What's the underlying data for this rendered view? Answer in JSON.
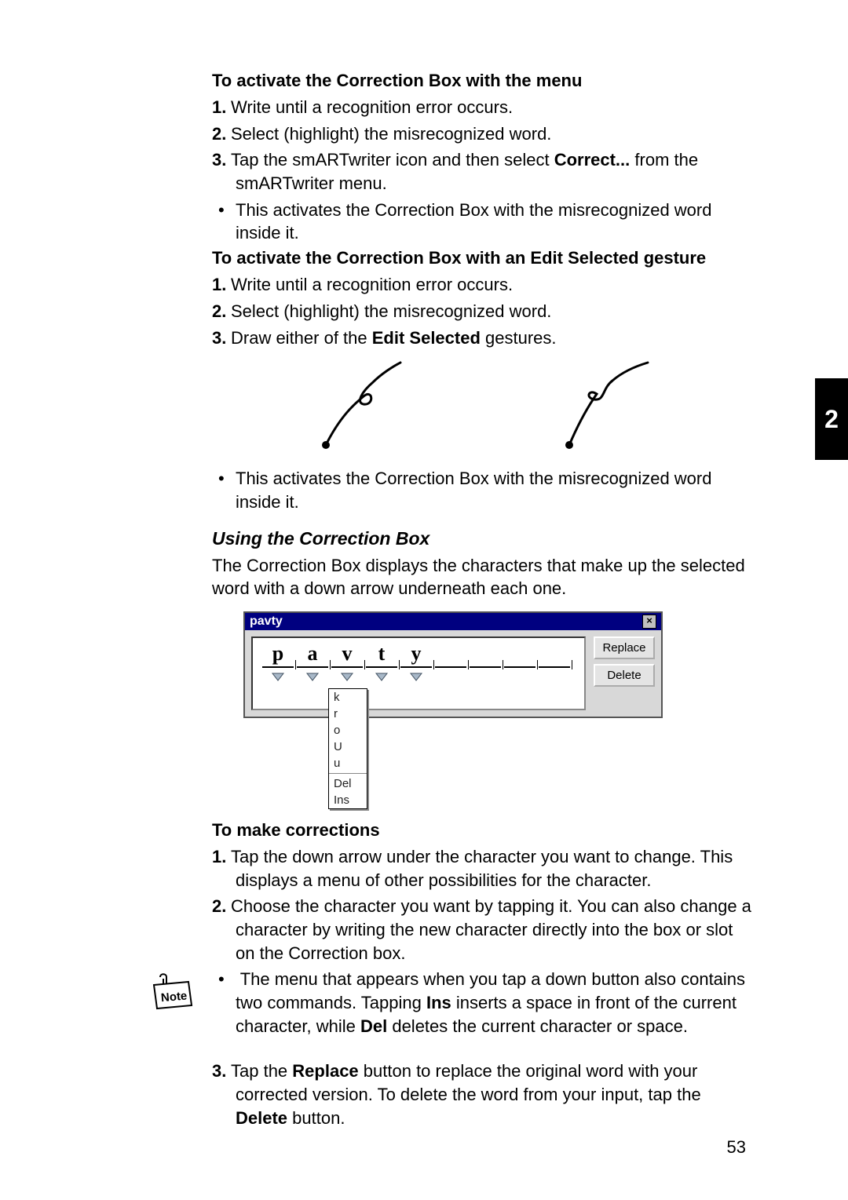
{
  "chapter_tab": "2",
  "page_number": "53",
  "section1": {
    "heading": "To activate the Correction Box with the menu",
    "steps": [
      "Write until a recognition error occurs.",
      "Select (highlight) the misrecognized word."
    ],
    "step3_pre": "Tap the smARTwriter icon and then select ",
    "step3_bold": "Correct...",
    "step3_post": " from the smARTwriter menu.",
    "bullet": "This activates the Correction Box with the misrecognized word inside it."
  },
  "section2": {
    "heading": "To activate the Correction Box with an Edit Selected gesture",
    "steps": [
      "Write until a recognition error occurs.",
      "Select (highlight) the misrecognized word."
    ],
    "step3_pre": "Draw either of the ",
    "step3_bold": "Edit Selected",
    "step3_post": " gestures.",
    "bullet": "This activates the Correction Box with the misrecognized word inside it."
  },
  "section3": {
    "heading": "Using the Correction Box",
    "intro": "The Correction Box displays the characters that make up the selected word with a down arrow underneath each one."
  },
  "correction_box": {
    "title": "pavty",
    "chars": [
      "p",
      "a",
      "v",
      "t",
      "y"
    ],
    "extra_empty_slots": 4,
    "dropdown_under_index": 2,
    "dropdown_items": [
      "k",
      "r",
      "o",
      "U",
      "u"
    ],
    "dropdown_commands": [
      "Del",
      "Ins"
    ],
    "buttons": {
      "replace": "Replace",
      "delete": "Delete"
    },
    "colors": {
      "titlebar_bg": "#000080",
      "titlebar_fg": "#ffffff",
      "panel_bg": "#d8d8d8",
      "input_bg": "#ffffff",
      "btn_bg": "#e4e4e4",
      "arrow_fill": "#a8b8c8",
      "arrow_stroke": "#405060"
    }
  },
  "section4": {
    "heading": "To make corrections",
    "step1": "Tap the down arrow under the character you want to change. This displays a menu of other possibilities for the character.",
    "step2": "Choose the character you want by tapping it. You can also change a character by writing the new character directly into the box or slot on the Correction box.",
    "note_pre": "The menu that appears when you tap a down button also contains two commands. Tapping ",
    "note_b1": "Ins",
    "note_mid1": " inserts a space in front of the current character, while ",
    "note_b2": "Del",
    "note_post": " deletes the current character or space.",
    "step3_pre": "Tap the ",
    "step3_b1": "Replace",
    "step3_mid1": " button to replace the original word with your corrected version. To delete the word from your input, tap the ",
    "step3_b2": "Delete",
    "step3_post": " button."
  },
  "note_label": "Note"
}
